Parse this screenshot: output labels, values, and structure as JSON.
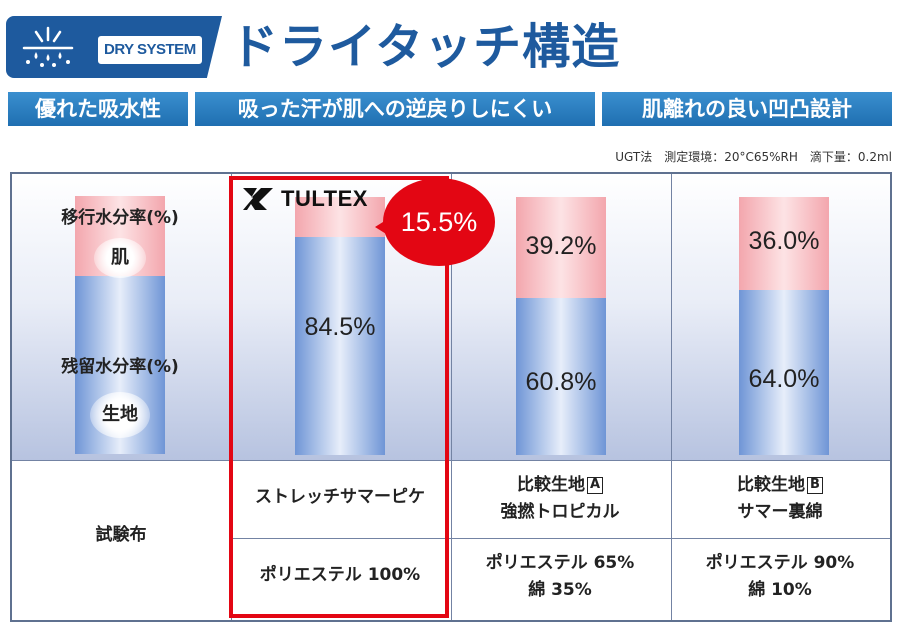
{
  "header": {
    "badge_label": "DRY SYSTEM",
    "badge_icon": "water-drops-icon",
    "title": "ドライタッチ構造",
    "brand_color": "#1e5a9e",
    "features": [
      "優れた吸水性",
      "吸った汗が肌への逆戻りしにくい",
      "肌離れの良い凹凸設計"
    ]
  },
  "conditions": "UGT法　測定環境：20°C65%RH　滴下量：0.2ml",
  "legend": {
    "top_label": "移行水分率(%)",
    "top_bubble": "肌",
    "bottom_label": "残留水分率(%)",
    "bottom_bubble": "生地"
  },
  "brand": {
    "name": "TULTEX",
    "highlight_color": "#e30613"
  },
  "chart_data": {
    "type": "bar",
    "stacked": true,
    "categories": [
      "ストレッチサマーピケ",
      "比較生地A 強撚トロピカル",
      "比較生地B サマー裏綿"
    ],
    "series": [
      {
        "name": "移行水分率(%)",
        "values": [
          15.5,
          39.2,
          36.0
        ],
        "color": "#f3a6ad"
      },
      {
        "name": "残留水分率(%)",
        "values": [
          84.5,
          60.8,
          64.0
        ],
        "color": "#6f95d6"
      }
    ],
    "labels": [
      {
        "top": "15.5%",
        "bottom": "84.5%"
      },
      {
        "top": "39.2%",
        "bottom": "60.8%"
      },
      {
        "top": "36.0%",
        "bottom": "64.0%"
      }
    ],
    "highlight_value": "15.5%",
    "ylim": [
      0,
      100
    ]
  },
  "table": {
    "row_header": "試験布",
    "columns": [
      {
        "name_line1": "ストレッチサマーピケ",
        "name_line2": "",
        "mark": "",
        "composition_line1": "ポリエステル 100%",
        "composition_line2": ""
      },
      {
        "name_line1": "比較生地",
        "name_line2": "強撚トロピカル",
        "mark": "A",
        "composition_line1": "ポリエステル 65%",
        "composition_line2": "綿 35%"
      },
      {
        "name_line1": "比較生地",
        "name_line2": "サマー裏綿",
        "mark": "B",
        "composition_line1": "ポリエステル 90%",
        "composition_line2": "綿 10%"
      }
    ]
  }
}
